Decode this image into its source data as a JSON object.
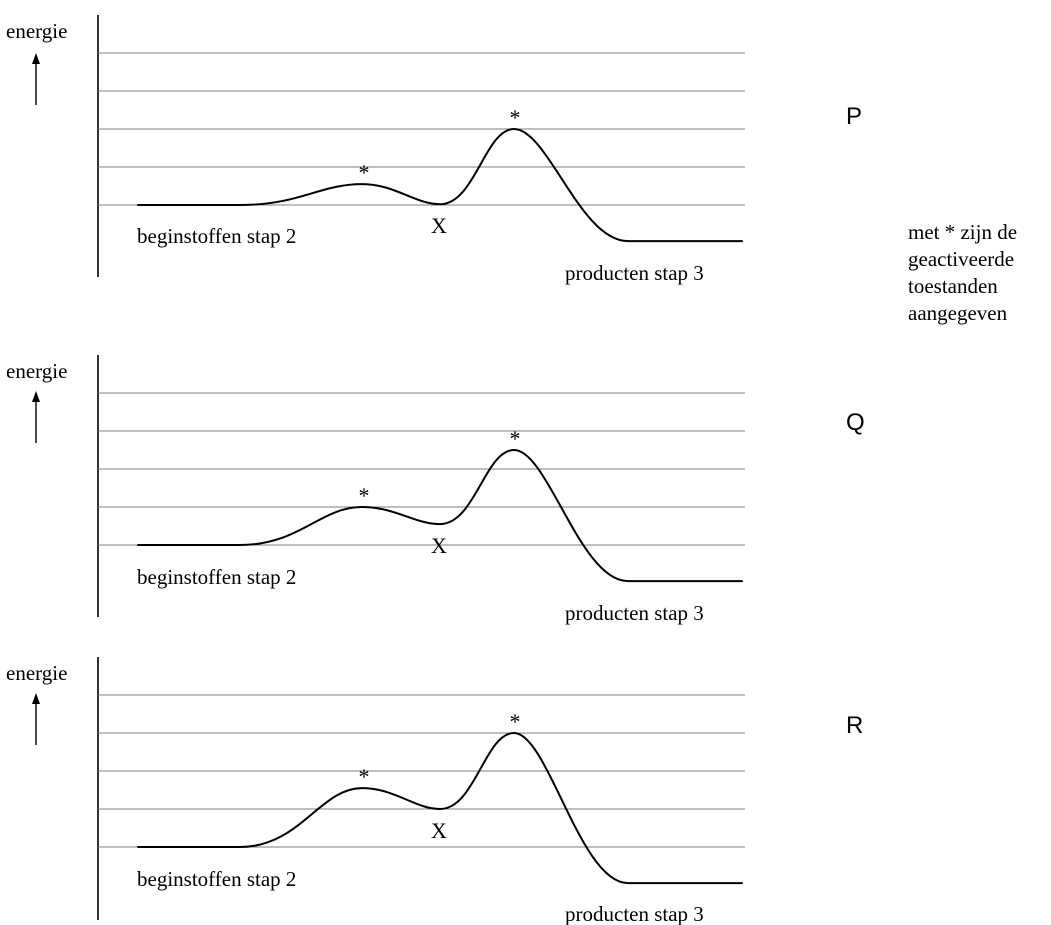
{
  "note_lines": [
    "met * zijn de",
    "geactiveerde",
    "toestanden",
    "aangegeven"
  ],
  "diagrams": [
    {
      "id": "P",
      "letter": "P",
      "axis_label": "energie",
      "start_label": "beginstoffen stap 2",
      "end_label": "producten stap 3",
      "intermediate_label": "X",
      "star_symbol": "*",
      "levels": {
        "reactants": 1,
        "ts1": 1.55,
        "intermediate": 1.02,
        "ts2": 3.0,
        "products": 0.05
      }
    },
    {
      "id": "Q",
      "letter": "Q",
      "axis_label": "energie",
      "start_label": "beginstoffen stap 2",
      "end_label": "producten stap 3",
      "intermediate_label": "X",
      "star_symbol": "*",
      "levels": {
        "reactants": 1,
        "ts1": 2.0,
        "intermediate": 1.55,
        "ts2": 3.5,
        "products": 0.05
      }
    },
    {
      "id": "R",
      "letter": "R",
      "axis_label": "energie",
      "start_label": "beginstoffen stap 2",
      "end_label": "producten stap 3",
      "intermediate_label": "X",
      "star_symbol": "*",
      "levels": {
        "reactants": 1,
        "ts1": 2.55,
        "intermediate": 2.0,
        "ts2": 4.0,
        "products": 0.05
      }
    }
  ]
}
